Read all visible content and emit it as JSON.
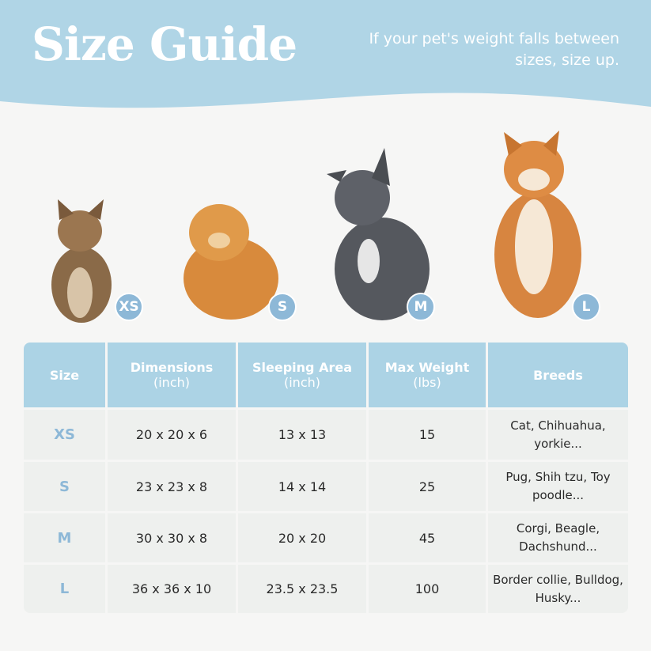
{
  "header": {
    "title": "Size Guide",
    "note": "If your pet's weight falls between sizes, size up."
  },
  "colors": {
    "header_bg": "#b0d5e6",
    "table_header": "#acd3e5",
    "cell": "#eef0ee",
    "badge": "#8db8d7"
  },
  "pets": [
    {
      "animal": "cat",
      "size": "XS"
    },
    {
      "animal": "pomeranian",
      "size": "S"
    },
    {
      "animal": "french-bulldog",
      "size": "M"
    },
    {
      "animal": "shiba-inu",
      "size": "L"
    }
  ],
  "table": {
    "headers": [
      {
        "title": "Size",
        "sub": ""
      },
      {
        "title": "Dimensions",
        "sub": "(inch)"
      },
      {
        "title": "Sleeping Area",
        "sub": "(inch)"
      },
      {
        "title": "Max Weight",
        "sub": "(lbs)"
      },
      {
        "title": "Breeds",
        "sub": ""
      }
    ],
    "rows": [
      {
        "size": "XS",
        "dimensions": "20 x 20 x 6",
        "sleeping_area": "13 x 13",
        "max_weight": "15",
        "breeds": "Cat, Chihuahua, yorkie..."
      },
      {
        "size": "S",
        "dimensions": "23 x 23 x 8",
        "sleeping_area": "14 x 14",
        "max_weight": "25",
        "breeds": "Pug, Shih tzu, Toy poodle..."
      },
      {
        "size": "M",
        "dimensions": "30 x 30 x 8",
        "sleeping_area": "20 x 20",
        "max_weight": "45",
        "breeds": "Corgi, Beagle, Dachshund..."
      },
      {
        "size": "L",
        "dimensions": "36 x 36 x 10",
        "sleeping_area": "23.5 x 23.5",
        "max_weight": "100",
        "breeds": "Border collie, Bulldog, Husky..."
      }
    ]
  }
}
